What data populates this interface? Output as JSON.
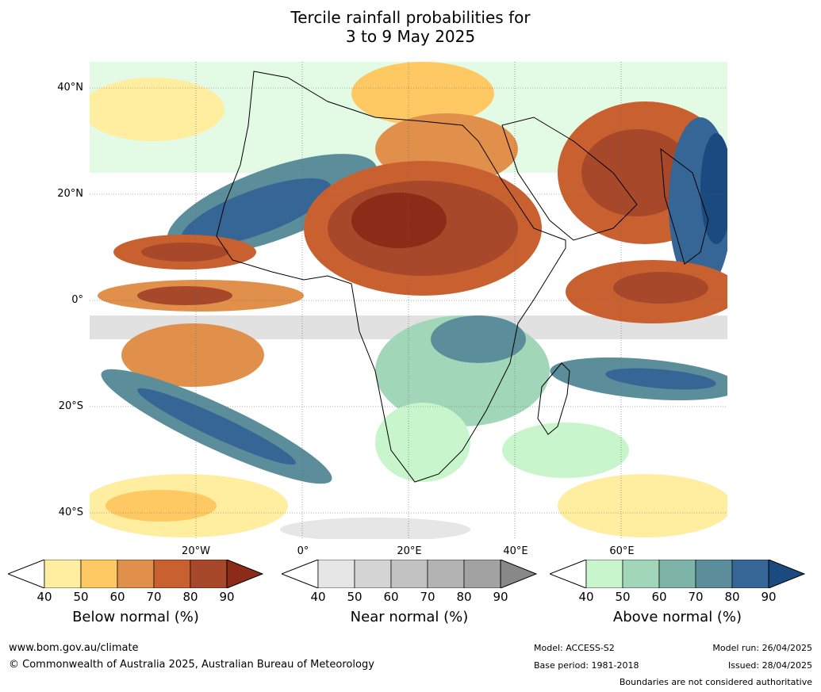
{
  "title_line1": "Tercile rainfall probabilities for",
  "title_line2": "3 to 9 May 2025",
  "lat_labels": [
    "40°N",
    "20°N",
    "0°",
    "20°S",
    "40°S"
  ],
  "lon_labels": [
    "20°W",
    "0°",
    "20°E",
    "40°E",
    "60°E"
  ],
  "colorbars": [
    {
      "name": "Below normal (%)",
      "ticks": [
        "40",
        "50",
        "60",
        "70",
        "80",
        "90"
      ],
      "colors": [
        "#ffeda0",
        "#fec863",
        "#e0904a",
        "#c8602f",
        "#a8482a",
        "#8b2b18"
      ]
    },
    {
      "name": "Near normal (%)",
      "ticks": [
        "40",
        "50",
        "60",
        "70",
        "80",
        "90"
      ],
      "colors": [
        "#e6e6e6",
        "#d4d4d4",
        "#c2c2c2",
        "#b3b3b3",
        "#a2a2a2",
        "#888888"
      ]
    },
    {
      "name": "Above normal (%)",
      "ticks": [
        "40",
        "50",
        "60",
        "70",
        "80",
        "90"
      ],
      "colors": [
        "#c8f5cc",
        "#a2d6b8",
        "#7eb3a8",
        "#5b8e9a",
        "#356696",
        "#1a4a80"
      ]
    }
  ],
  "footer": {
    "website": "www.bom.gov.au/climate",
    "copyright": "© Commonwealth of Australia 2025, Australian Bureau of Meteorology",
    "model": "Model: ACCESS-S2",
    "base_period": "Base period: 1981-2018",
    "model_run": "Model run: 26/04/2025",
    "issued": "Issued: 28/04/2025",
    "disclaimer": "Boundaries are not considered authoritative"
  }
}
